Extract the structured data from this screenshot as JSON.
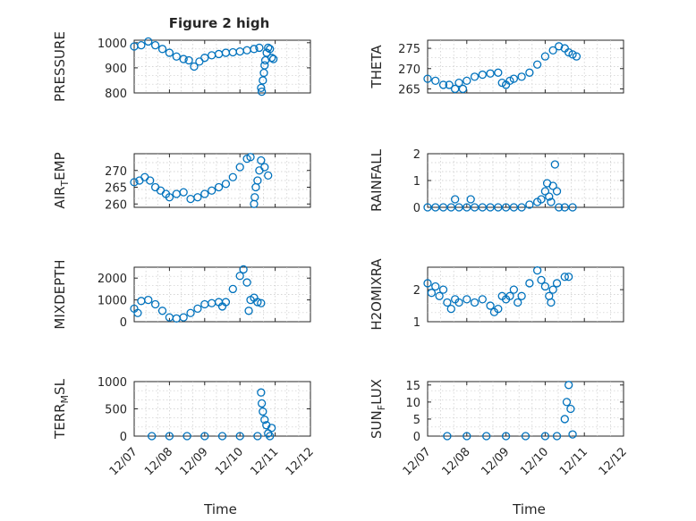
{
  "figure": {
    "title": "Figure 2 high",
    "marker_color": "#0072BD",
    "axis_color": "#262626",
    "grid_color": "#c8c8c8"
  },
  "chart_data": [
    {
      "type": "scatter",
      "ylabel": "PRESSURE",
      "ylim": [
        800,
        1010
      ],
      "yticks": [
        800,
        900,
        1000
      ],
      "x_dates": [
        "12/07",
        "12/08",
        "12/09",
        "12/10",
        "12/11",
        "12/12"
      ],
      "xlim": [
        0,
        5
      ],
      "grid": true,
      "show_xticklabels": false,
      "points": [
        [
          0.0,
          985
        ],
        [
          0.2,
          990
        ],
        [
          0.4,
          1005
        ],
        [
          0.6,
          990
        ],
        [
          0.8,
          975
        ],
        [
          1.0,
          960
        ],
        [
          1.2,
          945
        ],
        [
          1.4,
          935
        ],
        [
          1.55,
          930
        ],
        [
          1.7,
          905
        ],
        [
          1.85,
          925
        ],
        [
          2.0,
          940
        ],
        [
          2.2,
          950
        ],
        [
          2.4,
          955
        ],
        [
          2.6,
          960
        ],
        [
          2.8,
          962
        ],
        [
          3.0,
          965
        ],
        [
          3.2,
          970
        ],
        [
          3.4,
          975
        ],
        [
          3.55,
          980
        ],
        [
          3.6,
          820
        ],
        [
          3.62,
          805
        ],
        [
          3.65,
          850
        ],
        [
          3.68,
          880
        ],
        [
          3.7,
          910
        ],
        [
          3.72,
          930
        ],
        [
          3.76,
          960
        ],
        [
          3.8,
          980
        ],
        [
          3.85,
          975
        ],
        [
          3.9,
          940
        ],
        [
          3.95,
          935
        ]
      ]
    },
    {
      "type": "scatter",
      "ylabel": "THETA",
      "ylim": [
        264,
        277
      ],
      "yticks": [
        265,
        270,
        275
      ],
      "x_dates": [
        "12/07",
        "12/08",
        "12/09",
        "12/10",
        "12/11",
        "12/12"
      ],
      "xlim": [
        0,
        5
      ],
      "grid": true,
      "show_xticklabels": false,
      "points": [
        [
          0.0,
          267.5
        ],
        [
          0.2,
          267
        ],
        [
          0.4,
          266
        ],
        [
          0.55,
          266
        ],
        [
          0.7,
          265
        ],
        [
          0.8,
          266.5
        ],
        [
          0.9,
          265
        ],
        [
          1.0,
          267
        ],
        [
          1.2,
          268
        ],
        [
          1.4,
          268.5
        ],
        [
          1.6,
          268.8
        ],
        [
          1.8,
          269
        ],
        [
          1.9,
          266.5
        ],
        [
          2.0,
          266
        ],
        [
          2.1,
          267
        ],
        [
          2.2,
          267.5
        ],
        [
          2.4,
          268
        ],
        [
          2.6,
          269
        ],
        [
          2.8,
          271
        ],
        [
          3.0,
          273
        ],
        [
          3.2,
          274.5
        ],
        [
          3.35,
          275.5
        ],
        [
          3.5,
          275
        ],
        [
          3.6,
          274
        ],
        [
          3.7,
          273.5
        ],
        [
          3.8,
          273
        ]
      ]
    },
    {
      "type": "scatter",
      "ylabel": "AIR_TEMP",
      "ylim": [
        259,
        275
      ],
      "yticks": [
        260,
        265,
        270
      ],
      "x_dates": [
        "12/07",
        "12/08",
        "12/09",
        "12/10",
        "12/11",
        "12/12"
      ],
      "xlim": [
        0,
        5
      ],
      "grid": true,
      "show_xticklabels": false,
      "points": [
        [
          0.0,
          266.5
        ],
        [
          0.15,
          267
        ],
        [
          0.3,
          268
        ],
        [
          0.45,
          267
        ],
        [
          0.6,
          265
        ],
        [
          0.75,
          264
        ],
        [
          0.9,
          263
        ],
        [
          1.0,
          262
        ],
        [
          1.2,
          263
        ],
        [
          1.4,
          263.5
        ],
        [
          1.6,
          261.5
        ],
        [
          1.8,
          262
        ],
        [
          2.0,
          263
        ],
        [
          2.2,
          264
        ],
        [
          2.4,
          265
        ],
        [
          2.6,
          266
        ],
        [
          2.8,
          268
        ],
        [
          3.0,
          271
        ],
        [
          3.2,
          273.5
        ],
        [
          3.3,
          274
        ],
        [
          3.4,
          260
        ],
        [
          3.42,
          262
        ],
        [
          3.45,
          265
        ],
        [
          3.5,
          267
        ],
        [
          3.55,
          270
        ],
        [
          3.6,
          273
        ],
        [
          3.7,
          271
        ],
        [
          3.8,
          268.5
        ]
      ]
    },
    {
      "type": "scatter",
      "ylabel": "RAINFALL",
      "ylim": [
        0,
        2
      ],
      "yticks": [
        0,
        1,
        2
      ],
      "x_dates": [
        "12/07",
        "12/08",
        "12/09",
        "12/10",
        "12/11",
        "12/12"
      ],
      "xlim": [
        0,
        5
      ],
      "grid": true,
      "show_xticklabels": false,
      "points": [
        [
          0.0,
          0
        ],
        [
          0.2,
          0
        ],
        [
          0.4,
          0
        ],
        [
          0.6,
          0
        ],
        [
          0.7,
          0.3
        ],
        [
          0.8,
          0
        ],
        [
          1.0,
          0
        ],
        [
          1.1,
          0.3
        ],
        [
          1.2,
          0
        ],
        [
          1.4,
          0
        ],
        [
          1.6,
          0
        ],
        [
          1.8,
          0
        ],
        [
          2.0,
          0
        ],
        [
          2.2,
          0
        ],
        [
          2.4,
          0
        ],
        [
          2.6,
          0.1
        ],
        [
          2.8,
          0.2
        ],
        [
          2.9,
          0.3
        ],
        [
          3.0,
          0.6
        ],
        [
          3.05,
          0.9
        ],
        [
          3.1,
          0.4
        ],
        [
          3.15,
          0.2
        ],
        [
          3.2,
          0.8
        ],
        [
          3.25,
          1.6
        ],
        [
          3.3,
          0.6
        ],
        [
          3.35,
          0
        ],
        [
          3.5,
          0
        ],
        [
          3.7,
          0
        ]
      ]
    },
    {
      "type": "scatter",
      "ylabel": "MIXDEPTH",
      "ylim": [
        0,
        2500
      ],
      "yticks": [
        0,
        1000,
        2000
      ],
      "x_dates": [
        "12/07",
        "12/08",
        "12/09",
        "12/10",
        "12/11",
        "12/12"
      ],
      "xlim": [
        0,
        5
      ],
      "grid": true,
      "show_xticklabels": false,
      "points": [
        [
          0.0,
          600
        ],
        [
          0.1,
          400
        ],
        [
          0.2,
          950
        ],
        [
          0.4,
          1000
        ],
        [
          0.6,
          800
        ],
        [
          0.8,
          500
        ],
        [
          1.0,
          200
        ],
        [
          1.2,
          150
        ],
        [
          1.4,
          200
        ],
        [
          1.6,
          400
        ],
        [
          1.8,
          600
        ],
        [
          2.0,
          800
        ],
        [
          2.2,
          850
        ],
        [
          2.4,
          900
        ],
        [
          2.5,
          700
        ],
        [
          2.6,
          900
        ],
        [
          2.8,
          1500
        ],
        [
          3.0,
          2100
        ],
        [
          3.1,
          2400
        ],
        [
          3.2,
          1800
        ],
        [
          3.25,
          500
        ],
        [
          3.3,
          1000
        ],
        [
          3.4,
          1100
        ],
        [
          3.5,
          900
        ],
        [
          3.6,
          850
        ]
      ]
    },
    {
      "type": "scatter",
      "ylabel": "H2OMIXRA",
      "ylim": [
        1,
        2.7
      ],
      "yticks": [
        1,
        2
      ],
      "x_dates": [
        "12/07",
        "12/08",
        "12/09",
        "12/10",
        "12/11",
        "12/12"
      ],
      "xlim": [
        0,
        5
      ],
      "grid": true,
      "show_xticklabels": false,
      "points": [
        [
          0.0,
          2.2
        ],
        [
          0.1,
          1.9
        ],
        [
          0.2,
          2.1
        ],
        [
          0.3,
          1.8
        ],
        [
          0.4,
          2.0
        ],
        [
          0.5,
          1.6
        ],
        [
          0.6,
          1.4
        ],
        [
          0.7,
          1.7
        ],
        [
          0.8,
          1.6
        ],
        [
          1.0,
          1.7
        ],
        [
          1.2,
          1.6
        ],
        [
          1.4,
          1.7
        ],
        [
          1.6,
          1.5
        ],
        [
          1.7,
          1.3
        ],
        [
          1.8,
          1.4
        ],
        [
          1.9,
          1.8
        ],
        [
          2.0,
          1.7
        ],
        [
          2.1,
          1.8
        ],
        [
          2.2,
          2.0
        ],
        [
          2.3,
          1.6
        ],
        [
          2.4,
          1.8
        ],
        [
          2.6,
          2.2
        ],
        [
          2.8,
          2.6
        ],
        [
          2.9,
          2.3
        ],
        [
          3.0,
          2.1
        ],
        [
          3.1,
          1.8
        ],
        [
          3.15,
          1.6
        ],
        [
          3.2,
          2.0
        ],
        [
          3.3,
          2.2
        ],
        [
          3.5,
          2.4
        ],
        [
          3.6,
          2.4
        ]
      ]
    },
    {
      "type": "scatter",
      "ylabel": "TERR_MSL",
      "ylim": [
        0,
        1000
      ],
      "yticks": [
        0,
        500,
        1000
      ],
      "x_dates": [
        "12/07",
        "12/08",
        "12/09",
        "12/10",
        "12/11",
        "12/12"
      ],
      "xlim": [
        0,
        5
      ],
      "grid": true,
      "show_xticklabels": true,
      "points": [
        [
          0.5,
          0
        ],
        [
          1.0,
          0
        ],
        [
          1.5,
          0
        ],
        [
          2.0,
          0
        ],
        [
          2.5,
          0
        ],
        [
          3.0,
          0
        ],
        [
          3.5,
          0
        ],
        [
          3.6,
          800
        ],
        [
          3.62,
          600
        ],
        [
          3.65,
          450
        ],
        [
          3.7,
          300
        ],
        [
          3.75,
          200
        ],
        [
          3.8,
          50
        ],
        [
          3.85,
          0
        ],
        [
          3.9,
          150
        ]
      ]
    },
    {
      "type": "scatter",
      "ylabel": "SUN_FLUX",
      "ylim": [
        0,
        16
      ],
      "yticks": [
        0,
        5,
        10,
        15
      ],
      "x_dates": [
        "12/07",
        "12/08",
        "12/09",
        "12/10",
        "12/11",
        "12/12"
      ],
      "xlim": [
        0,
        5
      ],
      "grid": true,
      "show_xticklabels": true,
      "points": [
        [
          0.5,
          0
        ],
        [
          1.0,
          0
        ],
        [
          1.5,
          0
        ],
        [
          2.0,
          0
        ],
        [
          2.5,
          0
        ],
        [
          3.0,
          0
        ],
        [
          3.3,
          0
        ],
        [
          3.5,
          5
        ],
        [
          3.55,
          10
        ],
        [
          3.6,
          15
        ],
        [
          3.65,
          8
        ],
        [
          3.7,
          0.5
        ]
      ]
    }
  ],
  "xlabel": "Time"
}
